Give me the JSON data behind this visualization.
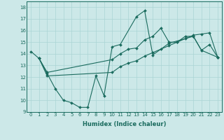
{
  "xlabel": "Humidex (Indice chaleur)",
  "bg_color": "#cce8e8",
  "line_color": "#1a6b5e",
  "xlim": [
    -0.5,
    23.5
  ],
  "ylim": [
    9,
    18.5
  ],
  "xticks": [
    0,
    1,
    2,
    3,
    4,
    5,
    6,
    7,
    8,
    9,
    10,
    11,
    12,
    13,
    14,
    15,
    16,
    17,
    18,
    19,
    20,
    21,
    22,
    23
  ],
  "yticks": [
    9,
    10,
    11,
    12,
    13,
    14,
    15,
    16,
    17,
    18
  ],
  "series": [
    {
      "x": [
        0,
        1,
        2,
        3,
        4,
        5,
        6,
        7,
        8,
        9,
        10,
        11,
        13,
        14,
        15,
        17,
        20,
        21,
        23
      ],
      "y": [
        14.2,
        13.6,
        12.3,
        11.0,
        10.0,
        9.8,
        9.4,
        9.4,
        12.1,
        10.4,
        14.6,
        14.8,
        17.2,
        17.7,
        13.9,
        14.9,
        15.5,
        14.3,
        13.7
      ]
    },
    {
      "x": [
        1,
        2,
        10,
        11,
        12,
        13,
        14,
        15,
        16,
        17,
        18,
        19,
        20,
        21,
        22,
        23
      ],
      "y": [
        13.6,
        12.4,
        13.5,
        14.0,
        14.4,
        14.5,
        15.2,
        15.5,
        16.2,
        15.0,
        15.0,
        15.5,
        15.5,
        14.3,
        14.8,
        13.7
      ]
    },
    {
      "x": [
        1,
        2,
        10,
        11,
        12,
        13,
        14,
        15,
        16,
        17,
        18,
        19,
        20,
        21,
        22,
        23
      ],
      "y": [
        13.6,
        12.1,
        12.4,
        12.9,
        13.2,
        13.4,
        13.8,
        14.1,
        14.4,
        14.7,
        15.0,
        15.3,
        15.6,
        15.7,
        15.8,
        13.7
      ]
    }
  ],
  "grid_color": "#aad4d4",
  "tick_fontsize": 5,
  "xlabel_fontsize": 6,
  "marker_size": 2.0
}
